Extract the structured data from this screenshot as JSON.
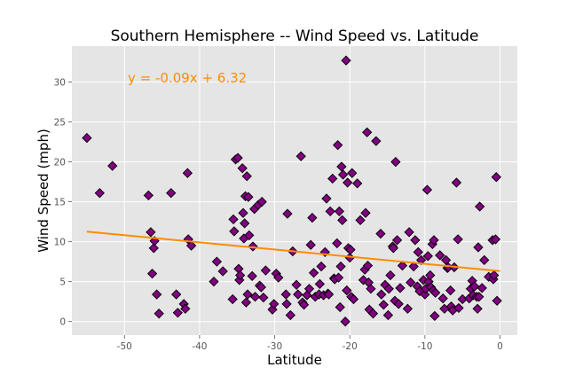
{
  "chart_data": {
    "type": "scatter",
    "title": "Southern Hemisphere -- Wind Speed vs. Latitude",
    "xlabel": "Latitude",
    "ylabel": "Wind Speed (mph)",
    "xlim": [
      -57,
      2.3
    ],
    "ylim": [
      -1.7,
      34.5
    ],
    "xticks": [
      -50,
      -40,
      -30,
      -20,
      -10,
      0
    ],
    "yticks": [
      0,
      5,
      10,
      15,
      20,
      25,
      30
    ],
    "grid": true,
    "background": "#e5e5e5",
    "marker_color": "#800080",
    "marker_edge": "#000000",
    "regression": {
      "equation": "y = -0.09x + 6.32",
      "slope": -0.09,
      "intercept": 6.32,
      "x_range": [
        -55,
        0
      ],
      "color": "#ff8c00"
    },
    "points": [
      [
        -55.0,
        23.0
      ],
      [
        -53.3,
        16.1
      ],
      [
        -51.6,
        19.5
      ],
      [
        -46.8,
        15.8
      ],
      [
        -46.5,
        11.2
      ],
      [
        -46.3,
        6.0
      ],
      [
        -46.1,
        9.2
      ],
      [
        -46.0,
        10.1
      ],
      [
        -45.7,
        3.4
      ],
      [
        -45.4,
        1.0
      ],
      [
        -43.8,
        16.1
      ],
      [
        -43.1,
        3.4
      ],
      [
        -42.9,
        1.1
      ],
      [
        -42.1,
        2.2
      ],
      [
        -41.9,
        1.6
      ],
      [
        -41.6,
        18.6
      ],
      [
        -41.5,
        10.3
      ],
      [
        -41.1,
        9.5
      ],
      [
        -38.1,
        5.0
      ],
      [
        -37.7,
        7.5
      ],
      [
        -36.9,
        6.3
      ],
      [
        -35.6,
        2.8
      ],
      [
        -35.5,
        12.8
      ],
      [
        -35.4,
        11.3
      ],
      [
        -35.2,
        20.3
      ],
      [
        -34.9,
        20.5
      ],
      [
        -34.8,
        6.6
      ],
      [
        -34.7,
        5.2
      ],
      [
        -34.6,
        5.8
      ],
      [
        -34.3,
        19.2
      ],
      [
        -34.2,
        13.6
      ],
      [
        -34.1,
        10.4
      ],
      [
        -34.0,
        12.3
      ],
      [
        -33.9,
        15.7
      ],
      [
        -33.8,
        2.4
      ],
      [
        -33.7,
        18.2
      ],
      [
        -33.6,
        3.4
      ],
      [
        -33.5,
        15.6
      ],
      [
        -33.4,
        10.8
      ],
      [
        -33.0,
        5.7
      ],
      [
        -32.9,
        9.4
      ],
      [
        -32.7,
        14.1
      ],
      [
        -32.6,
        3.1
      ],
      [
        -32.2,
        14.6
      ],
      [
        -32.0,
        4.5
      ],
      [
        -31.8,
        4.3
      ],
      [
        -31.7,
        15.0
      ],
      [
        -31.5,
        3.0
      ],
      [
        -31.2,
        6.4
      ],
      [
        -30.3,
        1.5
      ],
      [
        -30.1,
        2.2
      ],
      [
        -29.8,
        6.0
      ],
      [
        -29.5,
        5.5
      ],
      [
        -28.5,
        3.4
      ],
      [
        -28.4,
        2.2
      ],
      [
        -28.3,
        13.5
      ],
      [
        -27.9,
        0.8
      ],
      [
        -27.6,
        8.8
      ],
      [
        -27.1,
        4.6
      ],
      [
        -26.9,
        3.4
      ],
      [
        -26.5,
        20.7
      ],
      [
        -26.3,
        2.4
      ],
      [
        -26.1,
        2.1
      ],
      [
        -25.7,
        3.3
      ],
      [
        -25.4,
        4.1
      ],
      [
        -25.2,
        9.6
      ],
      [
        -25.0,
        13.0
      ],
      [
        -24.8,
        6.1
      ],
      [
        -24.6,
        3.1
      ],
      [
        -24.1,
        3.4
      ],
      [
        -24.0,
        4.7
      ],
      [
        -23.8,
        6.9
      ],
      [
        -23.5,
        3.3
      ],
      [
        -23.3,
        8.7
      ],
      [
        -23.1,
        15.4
      ],
      [
        -22.9,
        3.5
      ],
      [
        -22.8,
        3.4
      ],
      [
        -22.6,
        13.8
      ],
      [
        -22.3,
        17.9
      ],
      [
        -22.1,
        5.4
      ],
      [
        -22.0,
        5.3
      ],
      [
        -21.7,
        9.8
      ],
      [
        -21.6,
        22.1
      ],
      [
        -21.5,
        5.5
      ],
      [
        -21.4,
        13.8
      ],
      [
        -21.3,
        1.8
      ],
      [
        -21.2,
        6.9
      ],
      [
        -21.1,
        19.4
      ],
      [
        -21.0,
        12.7
      ],
      [
        -20.9,
        18.4
      ],
      [
        -20.6,
        0.0
      ],
      [
        -20.5,
        32.7
      ],
      [
        -20.4,
        3.9
      ],
      [
        -20.3,
        17.4
      ],
      [
        -20.2,
        9.2
      ],
      [
        -20.0,
        8.0
      ],
      [
        -19.9,
        9.0
      ],
      [
        -19.8,
        3.1
      ],
      [
        -19.7,
        18.6
      ],
      [
        -19.5,
        2.8
      ],
      [
        -19.0,
        17.3
      ],
      [
        -18.6,
        12.7
      ],
      [
        -18.2,
        5.2
      ],
      [
        -18.0,
        6.5
      ],
      [
        -17.9,
        13.6
      ],
      [
        -17.7,
        23.7
      ],
      [
        -17.6,
        7.0
      ],
      [
        -17.5,
        4.9
      ],
      [
        -17.4,
        1.5
      ],
      [
        -17.2,
        4.1
      ],
      [
        -16.9,
        1.0
      ],
      [
        -16.5,
        22.6
      ],
      [
        -15.9,
        11.0
      ],
      [
        -15.8,
        3.4
      ],
      [
        -15.5,
        2.1
      ],
      [
        -15.3,
        4.6
      ],
      [
        -14.9,
        0.8
      ],
      [
        -14.8,
        4.1
      ],
      [
        -14.6,
        5.8
      ],
      [
        -14.3,
        9.4
      ],
      [
        -14.2,
        9.2
      ],
      [
        -14.0,
        2.6
      ],
      [
        -13.9,
        20.0
      ],
      [
        -13.7,
        10.2
      ],
      [
        -13.5,
        2.2
      ],
      [
        -13.3,
        4.2
      ],
      [
        -13.0,
        7.0
      ],
      [
        -12.3,
        1.6
      ],
      [
        -12.1,
        11.2
      ],
      [
        -11.9,
        4.9
      ],
      [
        -11.5,
        6.9
      ],
      [
        -11.3,
        10.2
      ],
      [
        -11.0,
        4.4
      ],
      [
        -10.9,
        8.7
      ],
      [
        -10.7,
        3.8
      ],
      [
        -10.5,
        7.7
      ],
      [
        -10.2,
        5.2
      ],
      [
        -10.0,
        3.4
      ],
      [
        -9.9,
        4.1
      ],
      [
        -9.7,
        16.5
      ],
      [
        -9.6,
        8.2
      ],
      [
        -9.5,
        5.0
      ],
      [
        -9.3,
        5.8
      ],
      [
        -9.2,
        4.3
      ],
      [
        -9.0,
        9.7
      ],
      [
        -8.9,
        3.9
      ],
      [
        -8.8,
        10.2
      ],
      [
        -8.7,
        0.7
      ],
      [
        -8.6,
        3.6
      ],
      [
        -8.0,
        8.3
      ],
      [
        -7.6,
        2.9
      ],
      [
        -7.4,
        1.6
      ],
      [
        -7.2,
        7.7
      ],
      [
        -7.0,
        6.7
      ],
      [
        -6.9,
        6.8
      ],
      [
        -6.6,
        3.9
      ],
      [
        -6.5,
        1.9
      ],
      [
        -6.3,
        1.4
      ],
      [
        -6.1,
        6.8
      ],
      [
        -5.8,
        17.4
      ],
      [
        -5.6,
        10.3
      ],
      [
        -5.5,
        1.7
      ],
      [
        -5.0,
        2.8
      ],
      [
        -4.1,
        2.9
      ],
      [
        -3.9,
        4.1
      ],
      [
        -3.7,
        5.1
      ],
      [
        -3.6,
        3.3
      ],
      [
        -3.4,
        4.4
      ],
      [
        -3.1,
        3.1
      ],
      [
        -3.0,
        1.6
      ],
      [
        -2.9,
        9.3
      ],
      [
        -2.8,
        3.1
      ],
      [
        -2.7,
        14.4
      ],
      [
        -2.4,
        4.2
      ],
      [
        -2.1,
        7.7
      ],
      [
        -1.5,
        5.6
      ],
      [
        -1.0,
        10.2
      ],
      [
        -0.9,
        5.3
      ],
      [
        -0.8,
        5.8
      ],
      [
        -0.6,
        10.3
      ],
      [
        -0.5,
        18.1
      ],
      [
        -0.4,
        2.6
      ]
    ]
  }
}
